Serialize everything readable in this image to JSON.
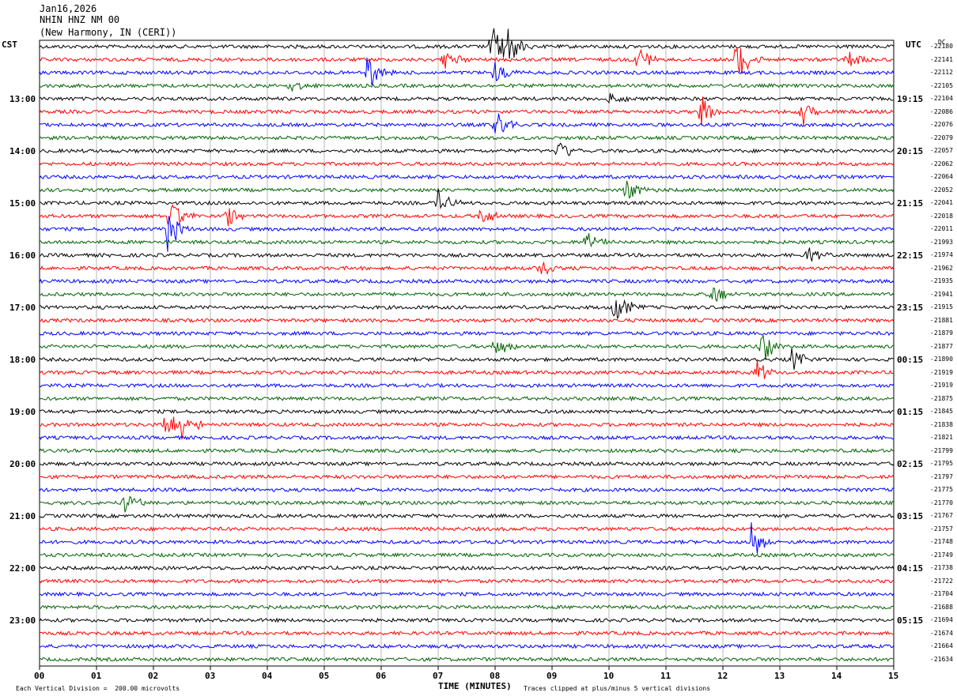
{
  "header": {
    "date": "Jan16,2026",
    "channel": "NHIN HNZ NM 00",
    "location": "(New Harmony, IN (CERI))"
  },
  "left_tz": "CST",
  "right_tz": "UTC",
  "dc_header": "DC",
  "footer_left": "Each Vertical Division =  200.00 microvolts",
  "footer_right": "Traces clipped at plus/minus 5 vertical divisions",
  "colors": {
    "trace": [
      "#000000",
      "#ff0000",
      "#0000ff",
      "#006400"
    ],
    "grid": "#888888"
  },
  "chart_data": {
    "type": "line",
    "title": "",
    "xlabel": "TIME (MINUTES)",
    "ylabel": "",
    "x_ticks": [
      "00",
      "01",
      "02",
      "03",
      "04",
      "05",
      "06",
      "07",
      "08",
      "09",
      "10",
      "11",
      "12",
      "13",
      "14",
      "15"
    ],
    "xlim": [
      0,
      15
    ],
    "left_hour_labels": [
      "13:00",
      "14:00",
      "15:00",
      "16:00",
      "17:00",
      "18:00",
      "19:00",
      "20:00",
      "21:00",
      "22:00",
      "23:00"
    ],
    "right_hour_labels": [
      "19:15",
      "20:15",
      "21:15",
      "22:15",
      "23:15",
      "00:15",
      "01:15",
      "02:15",
      "03:15",
      "04:15",
      "05:15"
    ],
    "dc_offsets": [
      "-22180",
      "-22141",
      "-22112",
      "-22105",
      "-22104",
      "-22086",
      "-22076",
      "-22079",
      "-22057",
      "-22062",
      "-22064",
      "-22052",
      "-22041",
      "-22018",
      "-22011",
      "-21993",
      "-21974",
      "-21962",
      "-21935",
      "-21941",
      "-21915",
      "-21881",
      "-21879",
      "-21877",
      "-21890",
      "-21919",
      "-21919",
      "-21875",
      "-21845",
      "-21838",
      "-21821",
      "-21799",
      "-21795",
      "-21797",
      "-21775",
      "-21770",
      "-21767",
      "-21757",
      "-21748",
      "-21749",
      "-21738",
      "-21722",
      "-21704",
      "-21688",
      "-21694",
      "-21674",
      "-21664",
      "-21634"
    ],
    "events": [
      {
        "trace": 0,
        "minute": 7.95,
        "amp": 5
      },
      {
        "trace": 0,
        "minute": 8.2,
        "amp": 5
      },
      {
        "trace": 1,
        "minute": 7.1,
        "amp": 3
      },
      {
        "trace": 1,
        "minute": 10.5,
        "amp": 4
      },
      {
        "trace": 1,
        "minute": 12.25,
        "amp": 5
      },
      {
        "trace": 1,
        "minute": 14.2,
        "amp": 2
      },
      {
        "trace": 2,
        "minute": 5.75,
        "amp": 4
      },
      {
        "trace": 2,
        "minute": 8.0,
        "amp": 3
      },
      {
        "trace": 3,
        "minute": 4.4,
        "amp": 2
      },
      {
        "trace": 4,
        "minute": 10.0,
        "amp": 2
      },
      {
        "trace": 5,
        "minute": 11.6,
        "amp": 5
      },
      {
        "trace": 5,
        "minute": 13.4,
        "amp": 3
      },
      {
        "trace": 6,
        "minute": 8.0,
        "amp": 4
      },
      {
        "trace": 8,
        "minute": 9.1,
        "amp": 3
      },
      {
        "trace": 11,
        "minute": 10.3,
        "amp": 3
      },
      {
        "trace": 12,
        "minute": 7.0,
        "amp": 3
      },
      {
        "trace": 13,
        "minute": 2.3,
        "amp": 4
      },
      {
        "trace": 13,
        "minute": 3.3,
        "amp": 3
      },
      {
        "trace": 13,
        "minute": 7.7,
        "amp": 3
      },
      {
        "trace": 14,
        "minute": 2.25,
        "amp": 5
      },
      {
        "trace": 15,
        "minute": 9.6,
        "amp": 3
      },
      {
        "trace": 16,
        "minute": 13.5,
        "amp": 2
      },
      {
        "trace": 17,
        "minute": 8.8,
        "amp": 2
      },
      {
        "trace": 19,
        "minute": 11.8,
        "amp": 3
      },
      {
        "trace": 20,
        "minute": 10.1,
        "amp": 5
      },
      {
        "trace": 23,
        "minute": 8.0,
        "amp": 3
      },
      {
        "trace": 23,
        "minute": 12.7,
        "amp": 4
      },
      {
        "trace": 24,
        "minute": 13.2,
        "amp": 3
      },
      {
        "trace": 25,
        "minute": 12.6,
        "amp": 3
      },
      {
        "trace": 29,
        "minute": 2.2,
        "amp": 4
      },
      {
        "trace": 29,
        "minute": 2.5,
        "amp": 4
      },
      {
        "trace": 35,
        "minute": 1.5,
        "amp": 3
      },
      {
        "trace": 38,
        "minute": 12.5,
        "amp": 5
      }
    ]
  }
}
